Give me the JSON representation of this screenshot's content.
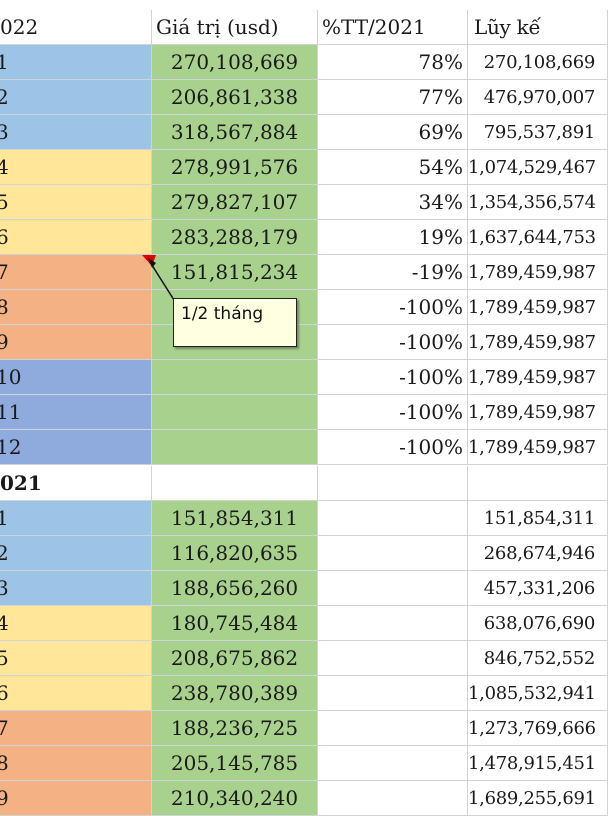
{
  "header": {
    "year_label": "022",
    "col_value": "Giá trị (usd)",
    "col_pct": "%TT/2021",
    "col_cum": "Lũy kế"
  },
  "rows_2022": [
    {
      "month": "1",
      "value": "270,108,669",
      "pct": "78%",
      "cum": "270,108,669",
      "color": "blue"
    },
    {
      "month": "2",
      "value": "206,861,338",
      "pct": "77%",
      "cum": "476,970,007",
      "color": "blue"
    },
    {
      "month": "3",
      "value": "318,567,884",
      "pct": "69%",
      "cum": "795,537,891",
      "color": "blue"
    },
    {
      "month": "4",
      "value": "278,991,576",
      "pct": "54%",
      "cum": "1,074,529,467",
      "color": "yellow"
    },
    {
      "month": "5",
      "value": "279,827,107",
      "pct": "34%",
      "cum": "1,354,356,574",
      "color": "yellow"
    },
    {
      "month": "6",
      "value": "283,288,179",
      "pct": "19%",
      "cum": "1,637,644,753",
      "color": "yellow"
    },
    {
      "month": "7",
      "value": "151,815,234",
      "pct": "-19%",
      "cum": "1,789,459,987",
      "color": "orange"
    },
    {
      "month": "8",
      "value": "",
      "pct": "-100%",
      "cum": "1,789,459,987",
      "color": "orange"
    },
    {
      "month": "9",
      "value": "",
      "pct": "-100%",
      "cum": "1,789,459,987",
      "color": "orange"
    },
    {
      "month": "10",
      "value": "",
      "pct": "-100%",
      "cum": "1,789,459,987",
      "color": "violet"
    },
    {
      "month": "11",
      "value": "",
      "pct": "-100%",
      "cum": "1,789,459,987",
      "color": "violet"
    },
    {
      "month": "12",
      "value": "",
      "pct": "-100%",
      "cum": "1,789,459,987",
      "color": "violet"
    }
  ],
  "year2_label": "021",
  "rows_2021": [
    {
      "month": "1",
      "value": "151,854,311",
      "cum": "151,854,311",
      "color": "blue"
    },
    {
      "month": "2",
      "value": "116,820,635",
      "cum": "268,674,946",
      "color": "blue"
    },
    {
      "month": "3",
      "value": "188,656,260",
      "cum": "457,331,206",
      "color": "blue"
    },
    {
      "month": "4",
      "value": "180,745,484",
      "cum": "638,076,690",
      "color": "yellow"
    },
    {
      "month": "5",
      "value": "208,675,862",
      "cum": "846,752,552",
      "color": "yellow"
    },
    {
      "month": "6",
      "value": "238,780,389",
      "cum": "1,085,532,941",
      "color": "yellow"
    },
    {
      "month": "7",
      "value": "188,236,725",
      "cum": "1,273,769,666",
      "color": "orange"
    },
    {
      "month": "8",
      "value": "205,145,785",
      "cum": "1,478,915,451",
      "color": "orange"
    },
    {
      "month": "9",
      "value": "210,340,240",
      "cum": "1,689,255,691",
      "color": "orange"
    }
  ],
  "comment": {
    "text": "1/2 tháng",
    "indicator_color": "#e00000"
  }
}
